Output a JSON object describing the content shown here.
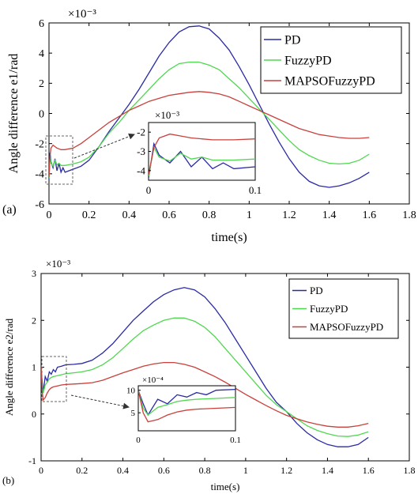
{
  "panels": [
    {
      "letter": "(a)",
      "exponent": "×10⁻³"
    },
    {
      "letter": "(b)",
      "exponent": "×10⁻³"
    }
  ],
  "chart_data": [
    {
      "type": "line",
      "panel": "(a)",
      "xlabel": "time(s)",
      "ylabel": "Angle difference e1/rad",
      "y_multiplier": "×10⁻³",
      "xlim": [
        0,
        1.8
      ],
      "ylim": [
        -6,
        6
      ],
      "xticks": [
        0,
        0.2,
        0.4,
        0.6,
        0.8,
        1,
        1.2,
        1.4,
        1.6,
        1.8
      ],
      "xtick_labels": [
        "0",
        "0.2",
        "0.4",
        "0.6",
        "0.8",
        "1",
        "1.2",
        "1.4",
        "1.6",
        "1.8"
      ],
      "yticks": [
        -6,
        -4,
        -2,
        0,
        2,
        4,
        6
      ],
      "ytick_labels": [
        "-6",
        "-4",
        "-2",
        "0",
        "2",
        "4",
        "6"
      ],
      "legend": "top-right",
      "grid": false,
      "series": [
        {
          "name": "PD",
          "color": "#2a2aa5",
          "x": [
            0,
            0.005,
            0.01,
            0.02,
            0.03,
            0.04,
            0.05,
            0.06,
            0.07,
            0.08,
            0.1,
            0.12,
            0.16,
            0.2,
            0.25,
            0.3,
            0.35,
            0.4,
            0.45,
            0.5,
            0.55,
            0.6,
            0.65,
            0.7,
            0.75,
            0.8,
            0.85,
            0.9,
            0.95,
            1.0,
            1.05,
            1.1,
            1.15,
            1.2,
            1.25,
            1.3,
            1.35,
            1.4,
            1.45,
            1.5,
            1.55,
            1.6
          ],
          "y": [
            -4.4,
            -2.6,
            -3.2,
            -3.6,
            -3.0,
            -3.8,
            -3.3,
            -3.9,
            -3.6,
            -3.9,
            -3.8,
            -3.7,
            -3.5,
            -3.1,
            -2.2,
            -1.2,
            -0.3,
            0.6,
            1.6,
            2.7,
            3.8,
            4.7,
            5.4,
            5.75,
            5.8,
            5.6,
            5.0,
            4.2,
            3.1,
            1.9,
            0.6,
            -0.7,
            -1.9,
            -3.0,
            -3.9,
            -4.5,
            -4.8,
            -4.9,
            -4.8,
            -4.6,
            -4.3,
            -3.9
          ]
        },
        {
          "name": "FuzzyPD",
          "color": "#4fd84f",
          "x": [
            0,
            0.005,
            0.01,
            0.02,
            0.03,
            0.04,
            0.05,
            0.06,
            0.08,
            0.1,
            0.12,
            0.16,
            0.2,
            0.25,
            0.3,
            0.35,
            0.4,
            0.45,
            0.5,
            0.55,
            0.6,
            0.65,
            0.7,
            0.75,
            0.8,
            0.85,
            0.9,
            0.95,
            1.0,
            1.05,
            1.1,
            1.15,
            1.2,
            1.25,
            1.3,
            1.35,
            1.4,
            1.45,
            1.5,
            1.55,
            1.6
          ],
          "y": [
            -4.3,
            -2.8,
            -3.3,
            -3.5,
            -3.1,
            -3.4,
            -3.3,
            -3.45,
            -3.45,
            -3.4,
            -3.35,
            -3.2,
            -2.9,
            -2.2,
            -1.3,
            -0.6,
            0.2,
            0.9,
            1.6,
            2.3,
            2.9,
            3.3,
            3.4,
            3.4,
            3.2,
            2.9,
            2.3,
            1.7,
            1.0,
            0.3,
            -0.4,
            -1.1,
            -1.8,
            -2.4,
            -2.8,
            -3.1,
            -3.3,
            -3.35,
            -3.3,
            -3.1,
            -2.7
          ]
        },
        {
          "name": "MAPSOFuzzyPD",
          "color": "#c8413c",
          "x": [
            0,
            0.005,
            0.01,
            0.02,
            0.03,
            0.04,
            0.05,
            0.06,
            0.08,
            0.1,
            0.12,
            0.16,
            0.2,
            0.25,
            0.3,
            0.35,
            0.4,
            0.45,
            0.5,
            0.55,
            0.6,
            0.65,
            0.7,
            0.75,
            0.8,
            0.85,
            0.9,
            0.95,
            1.0,
            1.05,
            1.1,
            1.15,
            1.2,
            1.25,
            1.3,
            1.35,
            1.4,
            1.45,
            1.5,
            1.55,
            1.6
          ],
          "y": [
            -4.2,
            -2.8,
            -2.3,
            -2.1,
            -2.2,
            -2.3,
            -2.35,
            -2.4,
            -2.4,
            -2.35,
            -2.3,
            -2.0,
            -1.6,
            -1.1,
            -0.6,
            -0.2,
            0.2,
            0.5,
            0.8,
            1.0,
            1.2,
            1.3,
            1.4,
            1.45,
            1.4,
            1.3,
            1.1,
            0.8,
            0.5,
            0.2,
            -0.1,
            -0.4,
            -0.7,
            -1.0,
            -1.2,
            -1.4,
            -1.5,
            -1.6,
            -1.65,
            -1.65,
            -1.6
          ]
        }
      ],
      "inset": {
        "xlim": [
          0,
          0.1
        ],
        "ylim": [
          -4.5,
          -1.5
        ],
        "xtick_labels": [
          "0",
          "0.1"
        ],
        "ytick_labels": [
          "-2",
          "-3",
          "-4"
        ],
        "yticks": [
          -2,
          -3,
          -4
        ],
        "xticks": [
          0,
          0.1
        ],
        "exponent": "×10⁻³"
      }
    },
    {
      "type": "line",
      "panel": "(b)",
      "xlabel": "time(s)",
      "ylabel": "Angle difference e2/rad",
      "y_multiplier": "×10⁻³",
      "xlim": [
        0,
        1.8
      ],
      "ylim": [
        -1,
        3
      ],
      "xticks": [
        0,
        0.2,
        0.4,
        0.6,
        0.8,
        1,
        1.2,
        1.4,
        1.6,
        1.8
      ],
      "xtick_labels": [
        "0",
        "0.2",
        "0.4",
        "0.6",
        "0.8",
        "1",
        "1.2",
        "1.4",
        "1.6",
        "1.8"
      ],
      "yticks": [
        -1,
        0,
        1,
        2,
        3
      ],
      "ytick_labels": [
        "-1",
        "0",
        "1",
        "2",
        "3"
      ],
      "legend": "top-right",
      "grid": false,
      "series": [
        {
          "name": "PD",
          "color": "#2a2aa5",
          "x": [
            0,
            0.005,
            0.01,
            0.02,
            0.03,
            0.04,
            0.05,
            0.06,
            0.07,
            0.08,
            0.1,
            0.12,
            0.16,
            0.2,
            0.25,
            0.3,
            0.35,
            0.4,
            0.45,
            0.5,
            0.55,
            0.6,
            0.65,
            0.7,
            0.75,
            0.8,
            0.85,
            0.9,
            0.95,
            1.0,
            1.05,
            1.1,
            1.15,
            1.2,
            1.25,
            1.3,
            1.35,
            1.4,
            1.45,
            1.5,
            1.55,
            1.6
          ],
          "y": [
            1.0,
            0.7,
            0.45,
            0.8,
            0.7,
            0.9,
            0.85,
            0.95,
            0.9,
            1.0,
            1.02,
            1.05,
            1.06,
            1.08,
            1.15,
            1.3,
            1.5,
            1.75,
            2.0,
            2.2,
            2.4,
            2.55,
            2.65,
            2.7,
            2.65,
            2.5,
            2.25,
            1.95,
            1.6,
            1.25,
            0.9,
            0.55,
            0.25,
            0.05,
            -0.2,
            -0.4,
            -0.55,
            -0.65,
            -0.7,
            -0.7,
            -0.65,
            -0.5
          ]
        },
        {
          "name": "FuzzyPD",
          "color": "#4fd84f",
          "x": [
            0,
            0.005,
            0.01,
            0.02,
            0.03,
            0.04,
            0.05,
            0.06,
            0.08,
            0.1,
            0.12,
            0.16,
            0.2,
            0.25,
            0.3,
            0.35,
            0.4,
            0.45,
            0.5,
            0.55,
            0.6,
            0.65,
            0.7,
            0.75,
            0.8,
            0.85,
            0.9,
            0.95,
            1.0,
            1.05,
            1.1,
            1.15,
            1.2,
            1.25,
            1.3,
            1.35,
            1.4,
            1.45,
            1.5,
            1.55,
            1.6
          ],
          "y": [
            1.0,
            0.6,
            0.45,
            0.62,
            0.68,
            0.75,
            0.78,
            0.8,
            0.82,
            0.84,
            0.86,
            0.88,
            0.9,
            0.95,
            1.05,
            1.2,
            1.4,
            1.6,
            1.78,
            1.9,
            2.0,
            2.05,
            2.05,
            1.98,
            1.85,
            1.65,
            1.4,
            1.15,
            0.9,
            0.65,
            0.4,
            0.2,
            0.05,
            -0.1,
            -0.25,
            -0.35,
            -0.42,
            -0.47,
            -0.48,
            -0.45,
            -0.38
          ]
        },
        {
          "name": "MAPSOFuzzyPD",
          "color": "#c8413c",
          "x": [
            0,
            0.005,
            0.01,
            0.02,
            0.03,
            0.04,
            0.05,
            0.06,
            0.08,
            0.1,
            0.12,
            0.16,
            0.2,
            0.25,
            0.3,
            0.35,
            0.4,
            0.45,
            0.5,
            0.55,
            0.6,
            0.65,
            0.7,
            0.75,
            0.8,
            0.85,
            0.9,
            0.95,
            1.0,
            1.05,
            1.1,
            1.15,
            1.2,
            1.25,
            1.3,
            1.35,
            1.4,
            1.45,
            1.5,
            1.55,
            1.6
          ],
          "y": [
            1.0,
            0.5,
            0.3,
            0.35,
            0.45,
            0.52,
            0.56,
            0.58,
            0.6,
            0.62,
            0.63,
            0.64,
            0.65,
            0.67,
            0.72,
            0.8,
            0.88,
            0.95,
            1.02,
            1.07,
            1.1,
            1.1,
            1.06,
            1.0,
            0.9,
            0.8,
            0.68,
            0.55,
            0.42,
            0.3,
            0.18,
            0.07,
            -0.03,
            -0.1,
            -0.17,
            -0.22,
            -0.26,
            -0.28,
            -0.28,
            -0.25,
            -0.2
          ]
        }
      ],
      "inset": {
        "xlim": [
          0,
          0.1
        ],
        "ylim": [
          1,
          11
        ],
        "xtick_labels": [
          "0",
          "0.1"
        ],
        "ytick_labels": [
          "10",
          "5"
        ],
        "yticks": [
          10,
          5
        ],
        "xticks": [
          0,
          0.1
        ],
        "exponent": "×10⁻⁴"
      }
    }
  ]
}
